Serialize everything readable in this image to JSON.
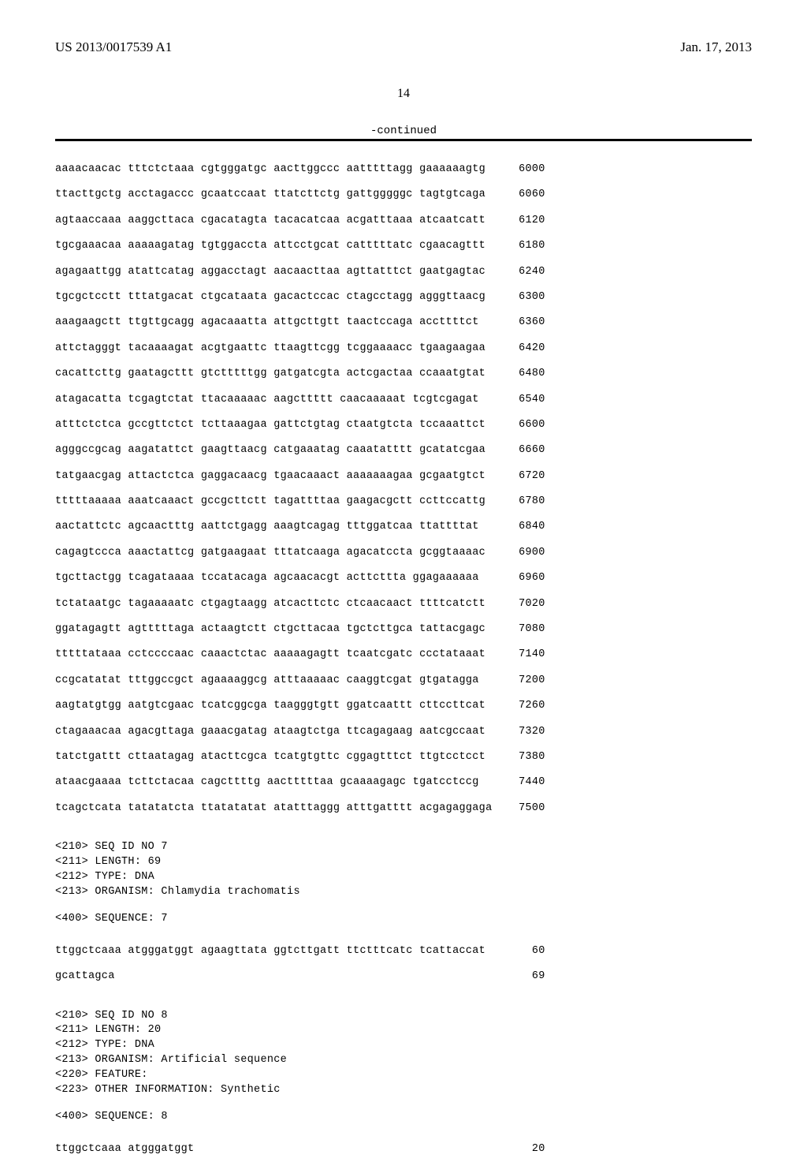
{
  "header": {
    "pub_number": "US 2013/0017539 A1",
    "pub_date": "Jan. 17, 2013",
    "page_number": "14",
    "continued_label": "-continued"
  },
  "main_sequence": {
    "rows": [
      {
        "seq": "aaaacaacac tttctctaaa cgtgggatgc aacttggccc aatttttagg gaaaaaagtg",
        "pos": "6000"
      },
      {
        "seq": "ttacttgctg acctagaccc gcaatccaat ttatcttctg gattgggggc tagtgtcaga",
        "pos": "6060"
      },
      {
        "seq": "agtaaccaaa aaggcttaca cgacatagta tacacatcaa acgatttaaa atcaatcatt",
        "pos": "6120"
      },
      {
        "seq": "tgcgaaacaa aaaaagatag tgtggaccta attcctgcat catttttatc cgaacagttt",
        "pos": "6180"
      },
      {
        "seq": "agagaattgg atattcatag aggacctagt aacaacttaa agttatttct gaatgagtac",
        "pos": "6240"
      },
      {
        "seq": "tgcgctcctt tttatgacat ctgcataata gacactccac ctagcctagg agggttaacg",
        "pos": "6300"
      },
      {
        "seq": "aaagaagctt ttgttgcagg agacaaatta attgcttgtt taactccaga accttttct",
        "pos": "6360"
      },
      {
        "seq": "attctagggt tacaaaagat acgtgaattc ttaagttcgg tcggaaaacc tgaagaagaa",
        "pos": "6420"
      },
      {
        "seq": "cacattcttg gaatagcttt gtctttttgg gatgatcgta actcgactaa ccaaatgtat",
        "pos": "6480"
      },
      {
        "seq": "atagacatta tcgagtctat ttacaaaaac aagcttttt caacaaaaat tcgtcgagat",
        "pos": "6540"
      },
      {
        "seq": "atttctctca gccgttctct tcttaaagaa gattctgtag ctaatgtcta tccaaattct",
        "pos": "6600"
      },
      {
        "seq": "agggccgcag aagatattct gaagttaacg catgaaatag caaatatttt gcatatcgaa",
        "pos": "6660"
      },
      {
        "seq": "tatgaacgag attactctca gaggacaacg tgaacaaact aaaaaaagaa gcgaatgtct",
        "pos": "6720"
      },
      {
        "seq": "tttttaaaaa aaatcaaact gccgcttctt tagattttaa gaagacgctt ccttccattg",
        "pos": "6780"
      },
      {
        "seq": "aactattctc agcaactttg aattctgagg aaagtcagag tttggatcaa ttattttat",
        "pos": "6840"
      },
      {
        "seq": "cagagtccca aaactattcg gatgaagaat tttatcaaga agacatccta gcggtaaaac",
        "pos": "6900"
      },
      {
        "seq": "tgcttactgg tcagataaaa tccatacaga agcaacacgt acttcttta ggagaaaaaa",
        "pos": "6960"
      },
      {
        "seq": "tctataatgc tagaaaaatc ctgagtaagg atcacttctc ctcaacaact ttttcatctt",
        "pos": "7020"
      },
      {
        "seq": "ggatagagtt agtttttaga actaagtctt ctgcttacaa tgctcttgca tattacgagc",
        "pos": "7080"
      },
      {
        "seq": "tttttataaa cctccccaac caaactctac aaaaagagtt tcaatcgatc ccctataaat",
        "pos": "7140"
      },
      {
        "seq": "ccgcatatat tttggccgct agaaaaggcg atttaaaaac caaggtcgat gtgatagga",
        "pos": "7200"
      },
      {
        "seq": "aagtatgtgg aatgtcgaac tcatcggcga taagggtgtt ggatcaattt cttccttcat",
        "pos": "7260"
      },
      {
        "seq": "ctagaaacaa agacgttaga gaaacgatag ataagtctga ttcagagaag aatcgccaat",
        "pos": "7320"
      },
      {
        "seq": "tatctgattt cttaatagag atacttcgca tcatgtgttc cggagtttct ttgtcctcct",
        "pos": "7380"
      },
      {
        "seq": "ataacgaaaa tcttctacaa cagcttttg aactttttaa gcaaaagagc tgatcctccg",
        "pos": "7440"
      },
      {
        "seq": "tcagctcata tatatatcta ttatatatat atatttaggg atttgatttt acgagaggaga",
        "pos": "7500"
      }
    ]
  },
  "seq7": {
    "seq_id": "<210> SEQ ID NO 7",
    "length": "<211> LENGTH: 69",
    "type": "<212> TYPE: DNA",
    "organism": "<213> ORGANISM: Chlamydia trachomatis",
    "label": "<400> SEQUENCE: 7",
    "rows": [
      {
        "seq": "ttggctcaaa atgggatggt agaagttata ggtcttgatt ttctttcatc tcattaccat",
        "pos": "60"
      },
      {
        "seq": "gcattagca",
        "pos": "69"
      }
    ]
  },
  "seq8": {
    "seq_id": "<210> SEQ ID NO 8",
    "length": "<211> LENGTH: 20",
    "type": "<212> TYPE: DNA",
    "organism": "<213> ORGANISM: Artificial sequence",
    "feature": "<220> FEATURE:",
    "other": "<223> OTHER INFORMATION: Synthetic",
    "label": "<400> SEQUENCE: 8",
    "rows": [
      {
        "seq": "ttggctcaaa atgggatggt",
        "pos": "20"
      }
    ]
  },
  "layout": {
    "seq_col_width": 66,
    "pos_col_width": 8
  }
}
